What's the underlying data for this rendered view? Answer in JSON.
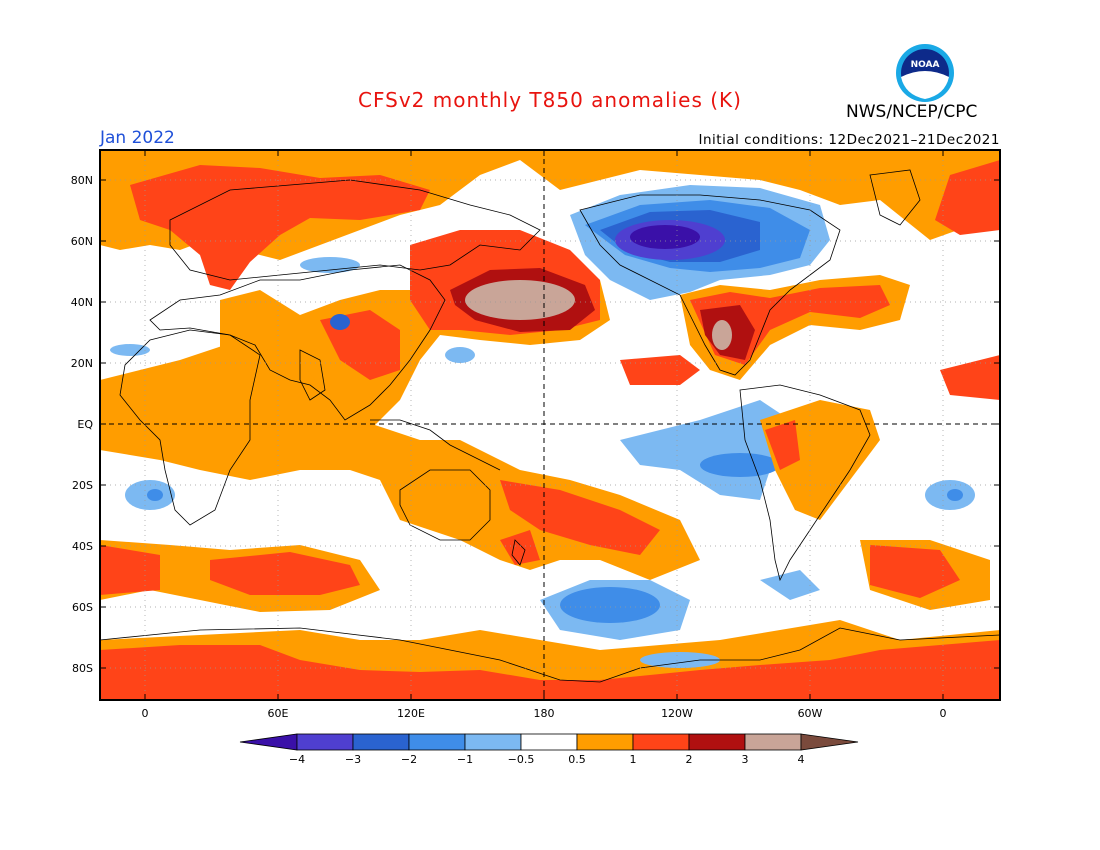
{
  "header": {
    "title": "CFSv2 monthly T850 anomalies (K)",
    "month": "Jan 2022",
    "initial_conditions": "Initial conditions: 12Dec2021–21Dec2021",
    "organization": "NWS/NCEP/CPC",
    "logo_text": "NOAA"
  },
  "axes": {
    "y_ticks": [
      "80N",
      "60N",
      "40N",
      "20N",
      "EQ",
      "20S",
      "40S",
      "60S",
      "80S"
    ],
    "x_ticks": [
      "0",
      "60E",
      "120E",
      "180",
      "120W",
      "60W",
      "0"
    ]
  },
  "legend": {
    "levels": [
      "−4",
      "−3",
      "−2",
      "−1",
      "−0.5",
      "0.5",
      "1",
      "2",
      "3",
      "4"
    ],
    "colors": [
      "#3a10a8",
      "#4f3fd0",
      "#2a63d0",
      "#3f8de8",
      "#7cb9f2",
      "#ffffff",
      "#ff9d00",
      "#ff4418",
      "#b01010",
      "#c9a598",
      "#7a4a3c"
    ]
  },
  "colors": {
    "title": "#e8140f",
    "month": "#1f50d8"
  }
}
